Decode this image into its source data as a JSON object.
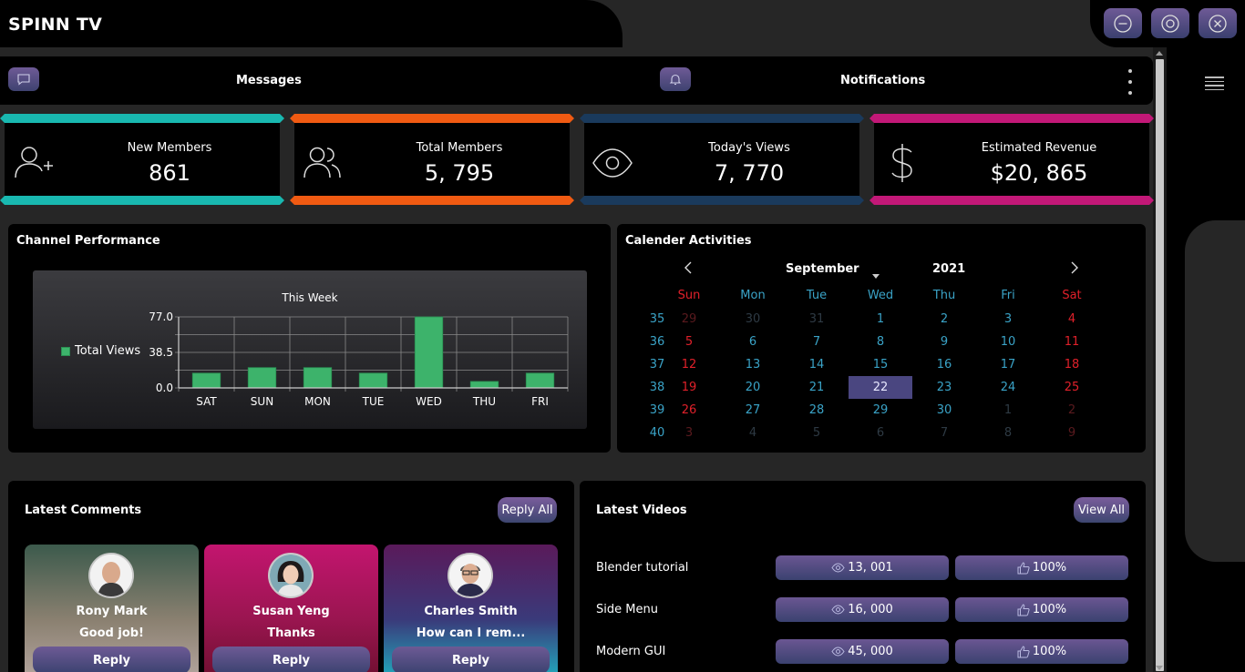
{
  "app": {
    "title": "SPINN TV"
  },
  "window_controls": {
    "icons": [
      "minimize-icon",
      "restore-icon",
      "close-icon"
    ]
  },
  "topbar": {
    "messages_label": "Messages",
    "notifications_label": "Notifications"
  },
  "stats": [
    {
      "label": "New Members",
      "value": "861",
      "color": "#19b8b0",
      "icon": "add-user-icon"
    },
    {
      "label": "Total Members",
      "value": "5, 795",
      "color": "#f05a12",
      "icon": "users-icon"
    },
    {
      "label": "Today's Views",
      "value": "7, 770",
      "color": "#1a3a5c",
      "icon": "eye-icon"
    },
    {
      "label": "Estimated Revenue",
      "value": "$20, 865",
      "color": "#c21877",
      "icon": "dollar-icon"
    }
  ],
  "channel_performance": {
    "title": "Channel Performance",
    "chart_data": {
      "type": "bar",
      "title": "This Week",
      "categories": [
        "SAT",
        "SUN",
        "MON",
        "TUE",
        "WED",
        "THU",
        "FRI"
      ],
      "series": [
        {
          "name": "Total Views",
          "values": [
            16,
            22,
            22,
            16,
            77,
            7,
            16
          ]
        }
      ],
      "ylim": [
        0,
        77
      ],
      "yticks": [
        "0.0",
        "38.5",
        "77.0"
      ],
      "xlabel": "",
      "ylabel": "",
      "grid": true,
      "legend": "left",
      "bar_color": "#3db36b"
    }
  },
  "calendar": {
    "title": "Calender Activities",
    "month": "September",
    "year": "2021",
    "weekdays": [
      "Sun",
      "Mon",
      "Tue",
      "Wed",
      "Thu",
      "Fri",
      "Sat"
    ],
    "selected": "22",
    "weeks": [
      {
        "num": "35",
        "days": [
          "29",
          "30",
          "31",
          "1",
          "2",
          "3",
          "4"
        ]
      },
      {
        "num": "36",
        "days": [
          "5",
          "6",
          "7",
          "8",
          "9",
          "10",
          "11"
        ]
      },
      {
        "num": "37",
        "days": [
          "12",
          "13",
          "14",
          "15",
          "16",
          "17",
          "18"
        ]
      },
      {
        "num": "38",
        "days": [
          "19",
          "20",
          "21",
          "22",
          "23",
          "24",
          "25"
        ]
      },
      {
        "num": "39",
        "days": [
          "26",
          "27",
          "28",
          "29",
          "30",
          "1",
          "2"
        ]
      },
      {
        "num": "40",
        "days": [
          "3",
          "4",
          "5",
          "6",
          "7",
          "8",
          "9"
        ]
      }
    ]
  },
  "comments": {
    "title": "Latest Comments",
    "reply_all_label": "Reply All",
    "items": [
      {
        "name": "Rony Mark",
        "text": "Good job!",
        "reply_label": "Reply"
      },
      {
        "name": "Susan Yeng",
        "text": "Thanks",
        "reply_label": "Reply"
      },
      {
        "name": "Charles Smith",
        "text": "How can I rem...",
        "reply_label": "Reply"
      }
    ]
  },
  "videos": {
    "title": "Latest Videos",
    "view_all_label": "View All",
    "items": [
      {
        "title": "Blender tutorial",
        "views": "13, 001",
        "likes": "100%"
      },
      {
        "title": "Side Menu",
        "views": "16, 000",
        "likes": "100%"
      },
      {
        "title": "Modern GUI",
        "views": "45, 000",
        "likes": "100%"
      }
    ]
  }
}
